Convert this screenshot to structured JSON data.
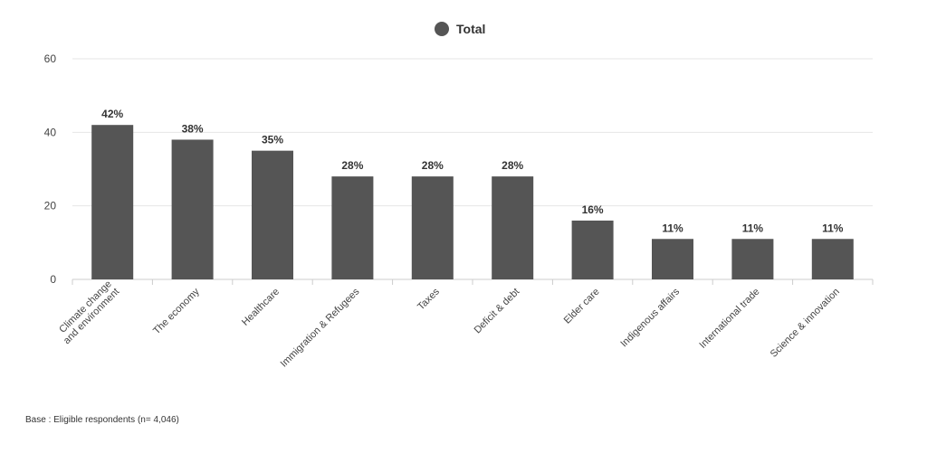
{
  "legend": {
    "label": "Total",
    "color": "#555555"
  },
  "footnote": "Base : Eligible respondents (n= 4,046)",
  "chart_data": {
    "type": "bar",
    "categories": [
      [
        "Climate change",
        "and environment"
      ],
      [
        "The economy"
      ],
      [
        "Healthcare"
      ],
      [
        "Immigration & Refugees"
      ],
      [
        "Taxes"
      ],
      [
        "Deficit & debt"
      ],
      [
        "Elder care"
      ],
      [
        "Indigenous affairs"
      ],
      [
        "International trade"
      ],
      [
        "Science & innovation"
      ]
    ],
    "series": [
      {
        "name": "Total",
        "values": [
          42,
          38,
          35,
          28,
          28,
          28,
          16,
          11,
          11,
          11
        ],
        "labels": [
          "42%",
          "38%",
          "35%",
          "28%",
          "28%",
          "28%",
          "16%",
          "11%",
          "11%",
          "11%"
        ],
        "color": "#555555"
      }
    ],
    "yticks": [
      0,
      20,
      40,
      60
    ],
    "ylim": [
      0,
      60
    ],
    "grid": true,
    "legend_position": "top-center"
  }
}
